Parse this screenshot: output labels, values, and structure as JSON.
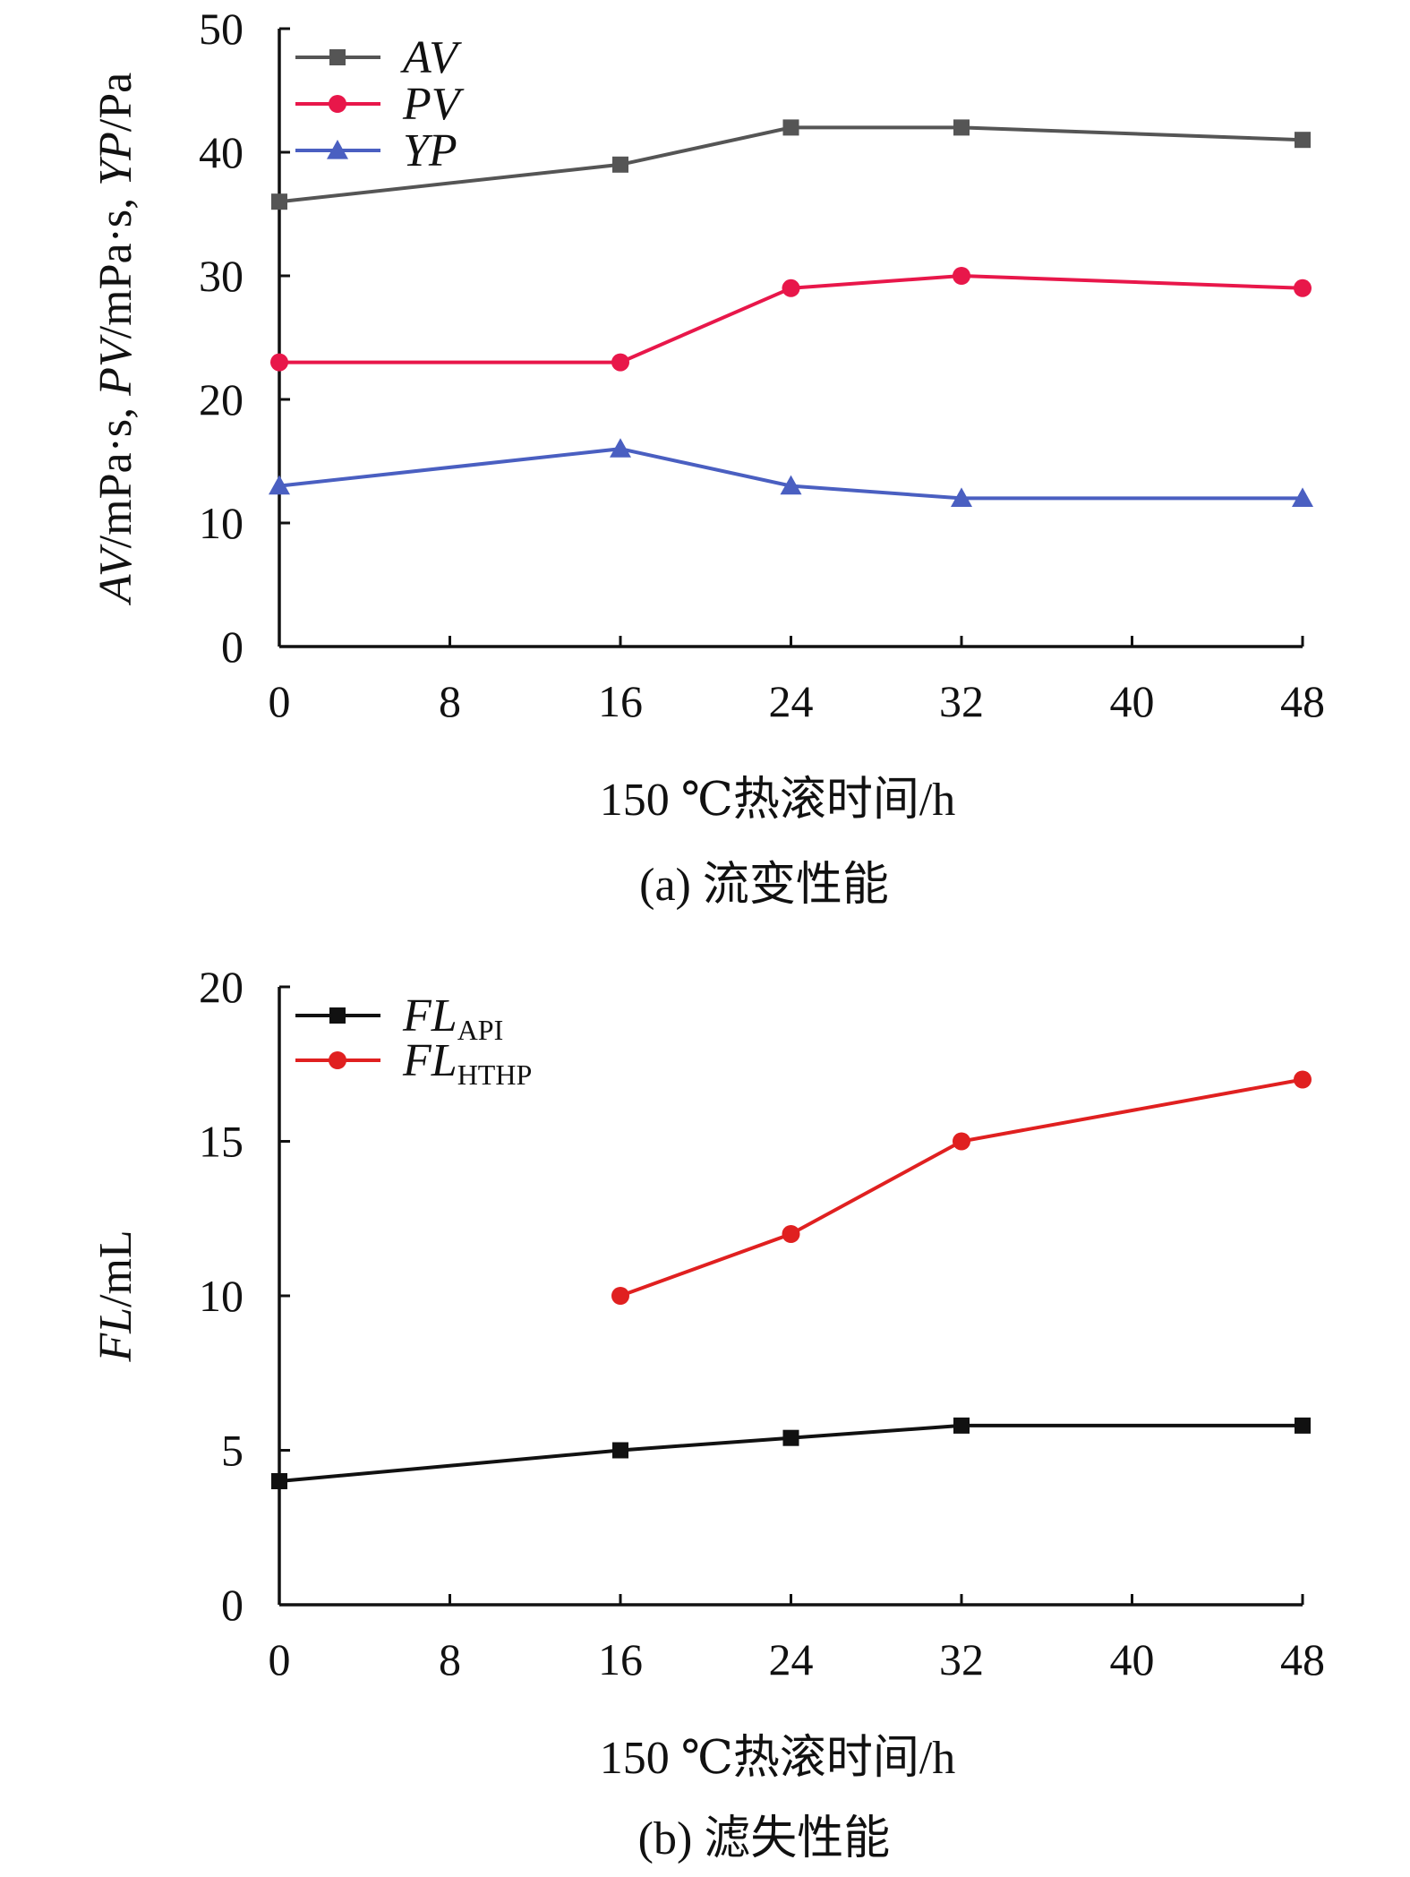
{
  "chart_data": [
    {
      "id": "a",
      "type": "line",
      "caption": "(a) 流变性能",
      "xlabel": "150 ℃热滚时间/h",
      "ylabel": {
        "parts": [
          {
            "text": "AV",
            "italic": true
          },
          {
            "text": "/mPa·s, ",
            "italic": false
          },
          {
            "text": "PV",
            "italic": true
          },
          {
            "text": "/mPa·s, ",
            "italic": false
          },
          {
            "text": "YP",
            "italic": true
          },
          {
            "text": "/Pa",
            "italic": false
          }
        ]
      },
      "xlim": [
        0,
        48
      ],
      "ylim": [
        0,
        50
      ],
      "xticks": [
        0,
        8,
        16,
        24,
        32,
        40,
        48
      ],
      "yticks": [
        0,
        10,
        20,
        30,
        40,
        50
      ],
      "legend_position": "top-left",
      "series": [
        {
          "name": "AV",
          "subscript": "",
          "color": "#555555",
          "marker": "square",
          "x": [
            0,
            16,
            24,
            32,
            48
          ],
          "values": [
            36,
            39,
            42,
            42,
            41
          ]
        },
        {
          "name": "PV",
          "subscript": "",
          "color": "#e8174a",
          "marker": "circle",
          "x": [
            0,
            16,
            24,
            32,
            48
          ],
          "values": [
            23,
            23,
            29,
            30,
            29
          ]
        },
        {
          "name": "YP",
          "subscript": "",
          "color": "#4a5fc1",
          "marker": "triangle",
          "x": [
            0,
            16,
            24,
            32,
            48
          ],
          "values": [
            13,
            16,
            13,
            12,
            12
          ]
        }
      ]
    },
    {
      "id": "b",
      "type": "line",
      "caption": "(b) 滤失性能",
      "xlabel": "150 ℃热滚时间/h",
      "ylabel": {
        "parts": [
          {
            "text": "FL",
            "italic": true
          },
          {
            "text": "/mL",
            "italic": false
          }
        ]
      },
      "xlim": [
        0,
        48
      ],
      "ylim": [
        0,
        20
      ],
      "xticks": [
        0,
        8,
        16,
        24,
        32,
        40,
        48
      ],
      "yticks": [
        0,
        5,
        10,
        15,
        20
      ],
      "legend_position": "top-left",
      "series": [
        {
          "name": "FL",
          "subscript": "API",
          "color": "#111111",
          "marker": "square",
          "x": [
            0,
            16,
            24,
            32,
            48
          ],
          "values": [
            4,
            5,
            5.4,
            5.8,
            5.8
          ]
        },
        {
          "name": "FL",
          "subscript": "HTHP",
          "color": "#e02020",
          "marker": "circle",
          "x": [
            16,
            24,
            32,
            48
          ],
          "values": [
            10,
            12,
            15,
            17
          ]
        }
      ]
    }
  ]
}
